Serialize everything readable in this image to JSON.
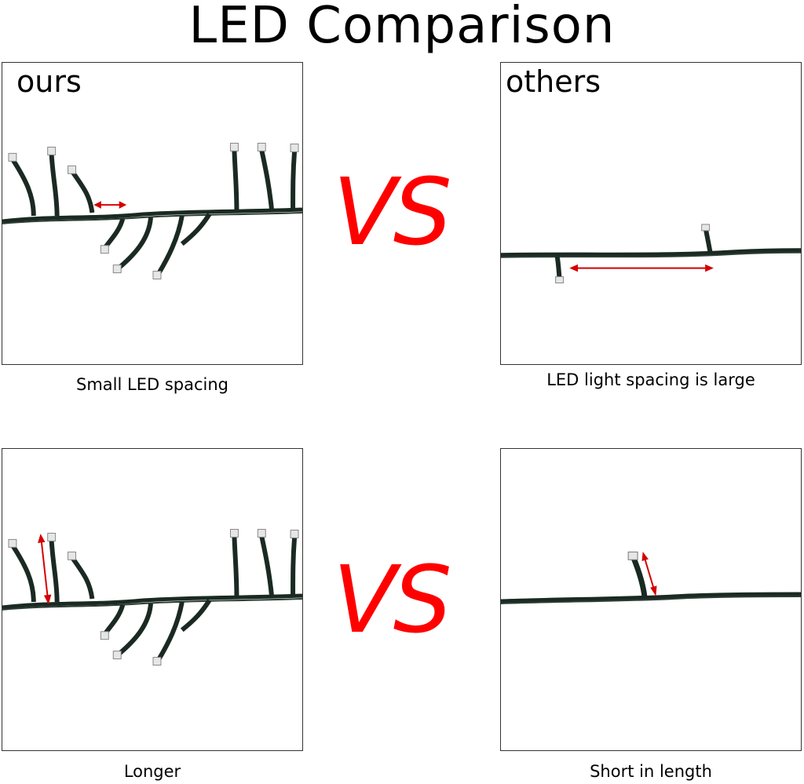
{
  "title": "LED Comparison",
  "vs_text": "VS",
  "colors": {
    "accent": "#ff0000",
    "arrow": "#d40000",
    "wire": "#1a2a22",
    "led": "#e6e6e6"
  },
  "panels": {
    "ours_top": {
      "label": "ours",
      "caption": "Small LED spacing"
    },
    "others_top": {
      "label": "others",
      "caption": "LED light spacing is large"
    },
    "ours_bottom": {
      "caption": "Longer"
    },
    "others_bottom": {
      "caption": "Short in length"
    }
  }
}
